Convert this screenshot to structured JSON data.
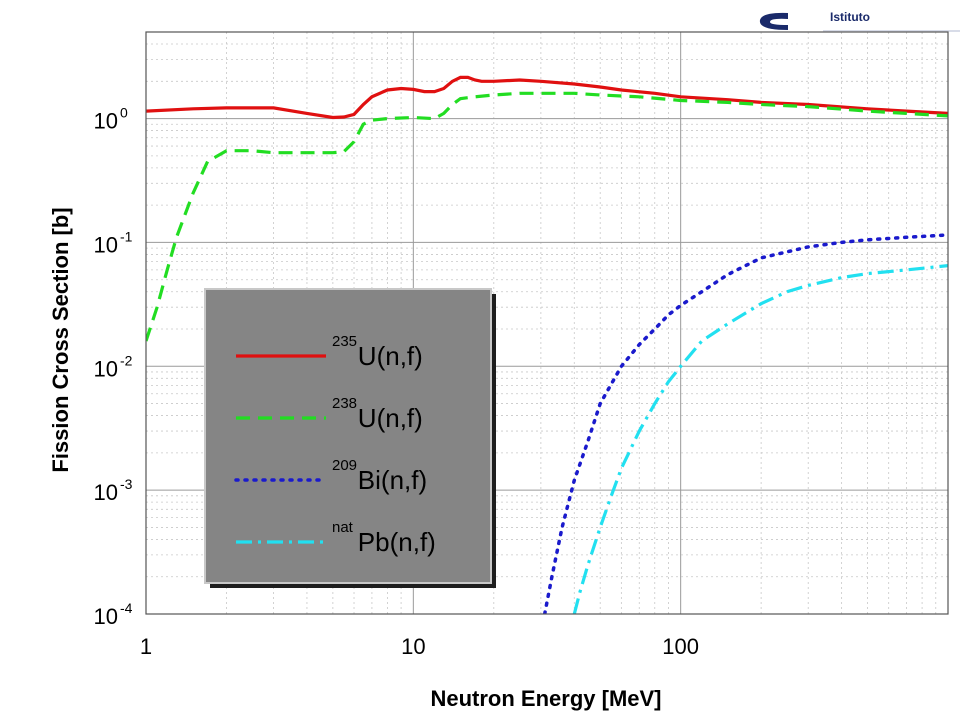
{
  "logo": {
    "text": "Istituto"
  },
  "chart_data": {
    "type": "line",
    "title": "",
    "xlabel": "Neutron Energy [MeV]",
    "ylabel": "Fission Cross Section [b]",
    "xscale": "log",
    "yscale": "log",
    "xlim": [
      1,
      1000
    ],
    "ylim": [
      0.0001,
      5
    ],
    "grid": true,
    "x_ticks": [
      {
        "value": 1,
        "label": "1"
      },
      {
        "value": 10,
        "label": "10"
      },
      {
        "value": 100,
        "label": "100"
      }
    ],
    "y_ticks": [
      {
        "value": 1,
        "base": "10",
        "exp": "0"
      },
      {
        "value": 0.1,
        "base": "10",
        "exp": "-1"
      },
      {
        "value": 0.01,
        "base": "10",
        "exp": "-2"
      },
      {
        "value": 0.001,
        "base": "10",
        "exp": "-3"
      },
      {
        "value": 0.0001,
        "base": "10",
        "exp": "-4"
      }
    ],
    "legend_position": "lower-left",
    "series": [
      {
        "name": "U(n,f)",
        "sup": "235",
        "color": "#e01010",
        "dash": "solid",
        "x": [
          1,
          1.5,
          2,
          3,
          4,
          5,
          5.5,
          6,
          6.5,
          7,
          8,
          9,
          10,
          11,
          12,
          13,
          14,
          15,
          16,
          17,
          18,
          20,
          25,
          30,
          40,
          50,
          60,
          80,
          100,
          150,
          200,
          300,
          500,
          700,
          1000
        ],
        "y": [
          1.15,
          1.2,
          1.22,
          1.22,
          1.1,
          1.02,
          1.03,
          1.08,
          1.3,
          1.5,
          1.7,
          1.75,
          1.72,
          1.65,
          1.65,
          1.75,
          2.0,
          2.15,
          2.15,
          2.05,
          2.0,
          2.0,
          2.05,
          2.0,
          1.9,
          1.8,
          1.7,
          1.6,
          1.5,
          1.42,
          1.35,
          1.3,
          1.2,
          1.15,
          1.1
        ]
      },
      {
        "name": "U(n,f)",
        "sup": "238",
        "color": "#22dd22",
        "dash": "long-dash",
        "x": [
          1,
          1.1,
          1.2,
          1.3,
          1.5,
          1.7,
          2,
          2.5,
          3,
          4,
          5,
          5.5,
          6,
          6.5,
          7,
          8,
          10,
          12,
          13,
          14,
          15,
          17,
          20,
          25,
          30,
          40,
          50,
          70,
          100,
          150,
          200,
          300,
          500,
          700,
          1000
        ],
        "y": [
          0.016,
          0.03,
          0.06,
          0.11,
          0.25,
          0.45,
          0.55,
          0.55,
          0.53,
          0.53,
          0.53,
          0.54,
          0.65,
          0.9,
          0.97,
          1.0,
          1.02,
          1.0,
          1.1,
          1.3,
          1.45,
          1.5,
          1.55,
          1.6,
          1.6,
          1.6,
          1.55,
          1.5,
          1.4,
          1.35,
          1.3,
          1.25,
          1.15,
          1.1,
          1.05
        ]
      },
      {
        "name": "Bi(n,f)",
        "sup": "209",
        "color": "#1a1acc",
        "dash": "dotted",
        "x": [
          31,
          33,
          36,
          40,
          45,
          50,
          60,
          70,
          80,
          90,
          100,
          120,
          150,
          200,
          300,
          400,
          500,
          700,
          1000
        ],
        "y": [
          0.0001,
          0.0002,
          0.0005,
          0.0012,
          0.0025,
          0.005,
          0.01,
          0.015,
          0.02,
          0.026,
          0.031,
          0.04,
          0.055,
          0.075,
          0.092,
          0.1,
          0.105,
          0.11,
          0.115
        ]
      },
      {
        "name": "Pb(n,f)",
        "sup": "nat",
        "color": "#22e0f0",
        "dash": "dash-dot",
        "x": [
          40,
          42,
          45,
          50,
          55,
          60,
          70,
          80,
          90,
          100,
          120,
          150,
          200,
          250,
          300,
          400,
          500,
          700,
          1000
        ],
        "y": [
          0.0001,
          0.00015,
          0.00025,
          0.0005,
          0.0009,
          0.0015,
          0.003,
          0.005,
          0.0075,
          0.01,
          0.016,
          0.022,
          0.032,
          0.04,
          0.045,
          0.052,
          0.056,
          0.06,
          0.065
        ]
      }
    ]
  }
}
